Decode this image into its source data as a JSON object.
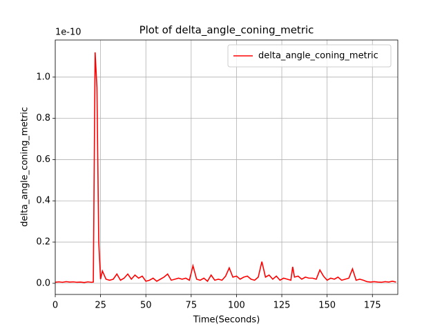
{
  "chart_data": {
    "type": "line",
    "title": "Plot of delta_angle_coning_metric",
    "x_label": "Time(Seconds)",
    "y_label": "delta_angle_coning_metric",
    "y_offset_label": "1e-10",
    "x": [
      0,
      2,
      4,
      6,
      8,
      10,
      12,
      14,
      16,
      18,
      20,
      21,
      22,
      23,
      24,
      25,
      26,
      28,
      30,
      32,
      34,
      36,
      38,
      40,
      42,
      44,
      46,
      48,
      50,
      52,
      54,
      56,
      58,
      60,
      62,
      64,
      66,
      68,
      70,
      72,
      74,
      76,
      78,
      80,
      82,
      84,
      86,
      88,
      90,
      92,
      94,
      96,
      98,
      100,
      102,
      104,
      106,
      108,
      110,
      112,
      114,
      116,
      118,
      120,
      122,
      124,
      126,
      128,
      130,
      131,
      132,
      134,
      136,
      138,
      140,
      142,
      144,
      146,
      148,
      150,
      152,
      154,
      156,
      158,
      160,
      162,
      164,
      166,
      168,
      170,
      172,
      174,
      176,
      178,
      180,
      182,
      184,
      186,
      188
    ],
    "series": [
      {
        "name": "delta_angle_coning_metric",
        "color": "#ff0000",
        "values": [
          0.005,
          0.007,
          0.005,
          0.008,
          0.006,
          0.007,
          0.005,
          0.006,
          0.004,
          0.007,
          0.005,
          0.006,
          1.12,
          0.95,
          0.2,
          0.02,
          0.06,
          0.02,
          0.015,
          0.02,
          0.045,
          0.015,
          0.025,
          0.045,
          0.02,
          0.04,
          0.025,
          0.035,
          0.01,
          0.015,
          0.025,
          0.01,
          0.02,
          0.03,
          0.045,
          0.015,
          0.02,
          0.025,
          0.02,
          0.025,
          0.015,
          0.085,
          0.02,
          0.015,
          0.025,
          0.01,
          0.04,
          0.015,
          0.02,
          0.015,
          0.035,
          0.075,
          0.03,
          0.035,
          0.02,
          0.03,
          0.035,
          0.02,
          0.015,
          0.03,
          0.105,
          0.03,
          0.04,
          0.02,
          0.035,
          0.015,
          0.025,
          0.02,
          0.015,
          0.08,
          0.03,
          0.035,
          0.02,
          0.03,
          0.025,
          0.025,
          0.02,
          0.065,
          0.035,
          0.015,
          0.025,
          0.02,
          0.03,
          0.015,
          0.02,
          0.025,
          0.07,
          0.015,
          0.02,
          0.015,
          0.008,
          0.006,
          0.008,
          0.006,
          0.005,
          0.008,
          0.006,
          0.01,
          0.006
        ]
      }
    ],
    "xlim": [
      0,
      189
    ],
    "ylim": [
      -0.054,
      1.18
    ],
    "xticks": [
      0,
      25,
      50,
      75,
      100,
      125,
      150,
      175
    ],
    "yticks": [
      {
        "value": 0,
        "label": "0.0"
      },
      0.2,
      0.4,
      0.6,
      0.8,
      {
        "value": 1,
        "label": "1.0"
      }
    ],
    "grid": true,
    "legend": "upper right"
  }
}
